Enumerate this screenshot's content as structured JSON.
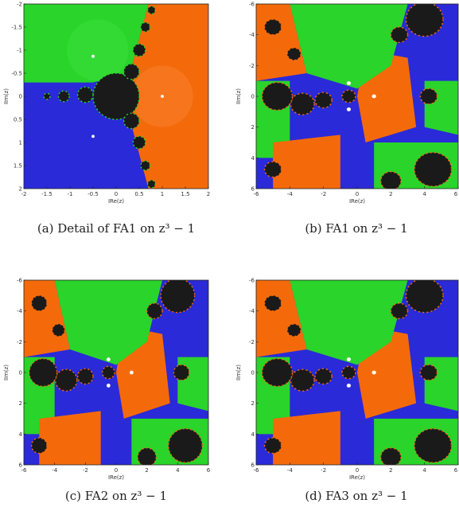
{
  "panels": [
    {
      "caption": "(a) Detail of FA1 on z³ − 1",
      "xlabel": "IRe(z)",
      "ylabel": "IIm(z)",
      "xlim": [
        -2,
        2
      ],
      "ylim": [
        -2,
        2
      ],
      "yinverted": true,
      "xticks": [
        -2,
        -1.5,
        -1,
        -0.5,
        0,
        0.5,
        1,
        1.5,
        2
      ],
      "yticks": [
        -2,
        -1.5,
        -1,
        -0.5,
        0,
        0.5,
        1,
        1.5,
        2
      ]
    },
    {
      "caption": "(b) FA1 on z³ − 1",
      "xlabel": "IRe(z)",
      "ylabel": "IIm(z)",
      "xlim": [
        -6,
        6
      ],
      "ylim": [
        -6,
        6
      ],
      "yinverted": true,
      "xticks": [
        -6,
        -4,
        -2,
        0,
        2,
        4,
        6
      ],
      "yticks": [
        -6,
        -4,
        -2,
        0,
        2,
        4,
        6
      ]
    },
    {
      "caption": "(c) FA2 on z³ − 1",
      "xlabel": "IRe(z)",
      "ylabel": "IIm(z)",
      "xlim": [
        -6,
        6
      ],
      "ylim": [
        -6,
        6
      ],
      "yinverted": true,
      "xticks": [
        -6,
        -4,
        -2,
        0,
        2,
        4,
        6
      ],
      "yticks": [
        -6,
        -4,
        -2,
        0,
        2,
        4,
        6
      ]
    },
    {
      "caption": "(d) FA3 on z³ − 1",
      "xlabel": "IRe(z)",
      "ylabel": "IIm(z)",
      "xlim": [
        -6,
        6
      ],
      "ylim": [
        -6,
        6
      ],
      "yinverted": true,
      "xticks": [
        -6,
        -4,
        -2,
        0,
        2,
        4,
        6
      ],
      "yticks": [
        -6,
        -4,
        -2,
        0,
        2,
        4,
        6
      ]
    }
  ]
}
